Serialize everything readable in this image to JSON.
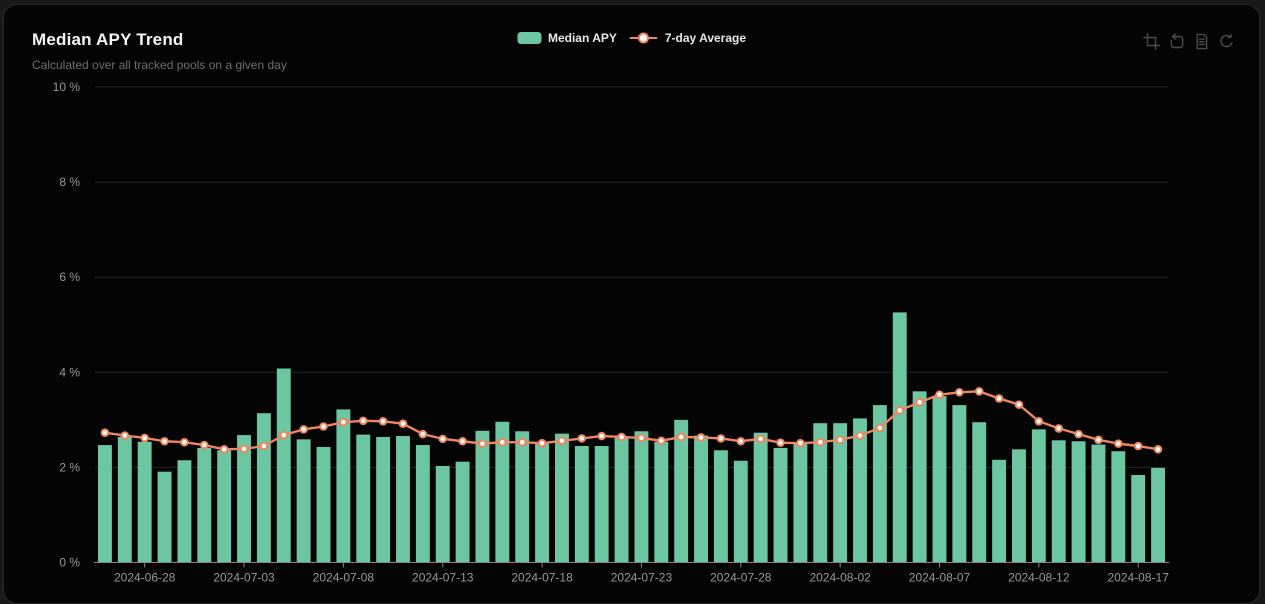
{
  "header": {
    "title": "Median APY Trend",
    "subtitle": "Calculated over all tracked pools on a given day"
  },
  "legend": {
    "items": [
      {
        "label": "Median APY",
        "type": "bar",
        "color": "#6cc6a2"
      },
      {
        "label": "7-day Average",
        "type": "line",
        "color": "#ee8660"
      }
    ],
    "position": "top-center"
  },
  "toolbar": {
    "icons": [
      "zoom-select-icon",
      "zoom-reset-icon",
      "data-view-icon",
      "restore-icon"
    ]
  },
  "colors": {
    "page_background": "#19191b",
    "card_background": "#040405",
    "card_border": "#29292c",
    "bar": "#6cc6a2",
    "line": "#ee8660",
    "marker_fill": "#ffffff",
    "grid": "#232327",
    "axis_line": "#85858a",
    "axis_label": "#98989c",
    "title": "#f5f5f5",
    "subtitle": "#6e6e72",
    "toolbox_icon": "#4a4a4d"
  },
  "chart_data": {
    "type": "bar+line",
    "title": "Median APY Trend",
    "subtitle": "Calculated over all tracked pools on a given day",
    "legend_entries": [
      "Median APY",
      "7-day Average"
    ],
    "legend_position": "top-center",
    "grid": true,
    "ylim": [
      0,
      10
    ],
    "y_ticks": [
      "0 %",
      "2 %",
      "4 %",
      "6 %",
      "8 %",
      "10 %"
    ],
    "x_tick_labels": [
      "2024-06-28",
      "2024-07-03",
      "2024-07-08",
      "2024-07-13",
      "2024-07-18",
      "2024-07-23",
      "2024-07-28",
      "2024-08-02",
      "2024-08-07",
      "2024-08-12",
      "2024-08-17"
    ],
    "x": [
      "2024-06-26",
      "2024-06-27",
      "2024-06-28",
      "2024-06-29",
      "2024-06-30",
      "2024-07-01",
      "2024-07-02",
      "2024-07-03",
      "2024-07-04",
      "2024-07-05",
      "2024-07-06",
      "2024-07-07",
      "2024-07-08",
      "2024-07-09",
      "2024-07-10",
      "2024-07-11",
      "2024-07-12",
      "2024-07-13",
      "2024-07-14",
      "2024-07-15",
      "2024-07-16",
      "2024-07-17",
      "2024-07-18",
      "2024-07-19",
      "2024-07-20",
      "2024-07-21",
      "2024-07-22",
      "2024-07-23",
      "2024-07-24",
      "2024-07-25",
      "2024-07-26",
      "2024-07-27",
      "2024-07-28",
      "2024-07-29",
      "2024-07-30",
      "2024-07-31",
      "2024-08-01",
      "2024-08-02",
      "2024-08-03",
      "2024-08-04",
      "2024-08-05",
      "2024-08-06",
      "2024-08-07",
      "2024-08-08",
      "2024-08-09",
      "2024-08-10",
      "2024-08-11",
      "2024-08-12",
      "2024-08-13",
      "2024-08-14",
      "2024-08-15",
      "2024-08-16",
      "2024-08-17",
      "2024-08-18"
    ],
    "series": [
      {
        "name": "Median APY",
        "type": "bar",
        "unit": "%",
        "values": [
          2.47,
          2.64,
          2.54,
          1.91,
          2.15,
          2.41,
          2.36,
          2.68,
          3.14,
          4.08,
          2.59,
          2.43,
          3.22,
          2.69,
          2.64,
          2.66,
          2.47,
          2.03,
          2.12,
          2.77,
          2.96,
          2.76,
          2.52,
          2.71,
          2.45,
          2.45,
          2.64,
          2.76,
          2.54,
          3.0,
          2.67,
          2.36,
          2.14,
          2.73,
          2.41,
          2.53,
          2.93,
          2.93,
          3.03,
          3.31,
          5.26,
          3.6,
          3.5,
          3.31,
          2.95,
          2.16,
          2.38,
          2.8,
          2.57,
          2.55,
          2.48,
          2.34,
          1.84,
          1.99
        ]
      },
      {
        "name": "7-day Average",
        "type": "line",
        "unit": "%",
        "values": [
          2.73,
          2.67,
          2.62,
          2.55,
          2.53,
          2.47,
          2.38,
          2.39,
          2.45,
          2.68,
          2.8,
          2.86,
          2.95,
          2.98,
          2.97,
          2.92,
          2.7,
          2.6,
          2.55,
          2.5,
          2.53,
          2.53,
          2.51,
          2.56,
          2.61,
          2.66,
          2.64,
          2.62,
          2.56,
          2.64,
          2.63,
          2.61,
          2.55,
          2.6,
          2.52,
          2.51,
          2.53,
          2.58,
          2.67,
          2.83,
          3.2,
          3.37,
          3.53,
          3.58,
          3.6,
          3.45,
          3.32,
          2.97,
          2.82,
          2.7,
          2.58,
          2.5,
          2.45,
          2.38
        ]
      }
    ]
  }
}
